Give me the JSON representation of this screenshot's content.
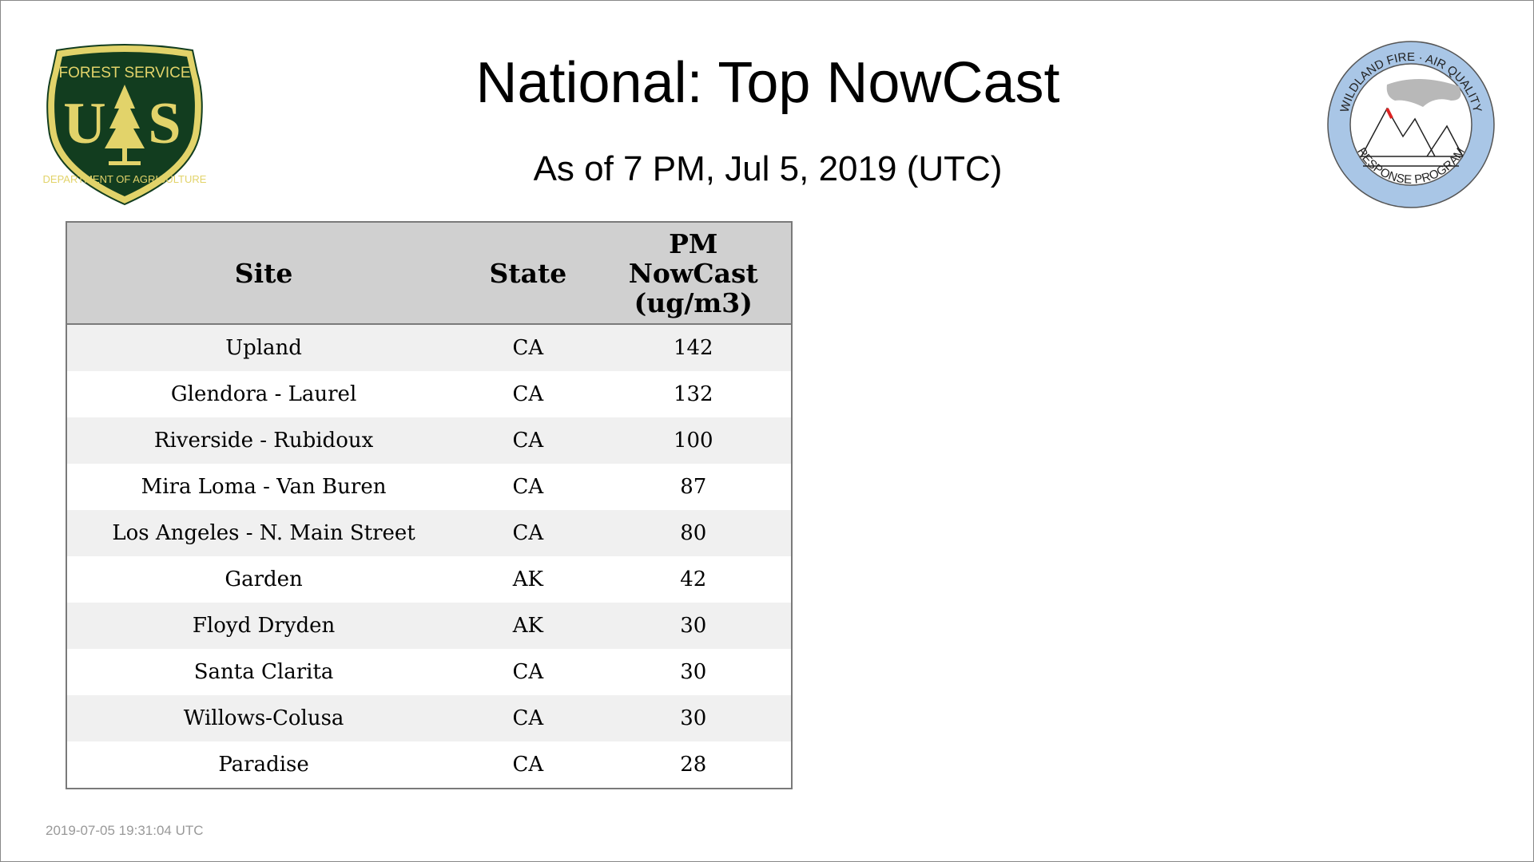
{
  "header": {
    "title": "National: Top NowCast",
    "subtitle": "As of  7 PM, Jul  5, 2019 (UTC)"
  },
  "logos": {
    "left": {
      "text_top": "FOREST SERVICE",
      "letters": "US",
      "text_bottom": "DEPARTMENT OF AGRICULTURE",
      "colors": {
        "green": "#123d1f",
        "gold": "#e2d36a"
      }
    },
    "right": {
      "text_top": "WILDLAND FIRE · AIR QUALITY",
      "text_bottom": "RESPONSE PROGRAM",
      "colors": {
        "ring": "#a9c6e6"
      }
    }
  },
  "table": {
    "columns": [
      "Site",
      "State",
      "PM NowCast (ug/m3)"
    ],
    "rows": [
      {
        "site": "Upland",
        "state": "CA",
        "value": "142"
      },
      {
        "site": "Glendora - Laurel",
        "state": "CA",
        "value": "132"
      },
      {
        "site": "Riverside - Rubidoux",
        "state": "CA",
        "value": "100"
      },
      {
        "site": "Mira Loma - Van Buren",
        "state": "CA",
        "value": "87"
      },
      {
        "site": "Los Angeles - N. Main Street",
        "state": "CA",
        "value": "80"
      },
      {
        "site": "Garden",
        "state": "AK",
        "value": "42"
      },
      {
        "site": "Floyd Dryden",
        "state": "AK",
        "value": "30"
      },
      {
        "site": "Santa Clarita",
        "state": "CA",
        "value": "30"
      },
      {
        "site": "Willows-Colusa",
        "state": "CA",
        "value": "30"
      },
      {
        "site": "Paradise",
        "state": "CA",
        "value": "28"
      }
    ]
  },
  "footer": {
    "timestamp": "2019-07-05 19:31:04 UTC"
  }
}
